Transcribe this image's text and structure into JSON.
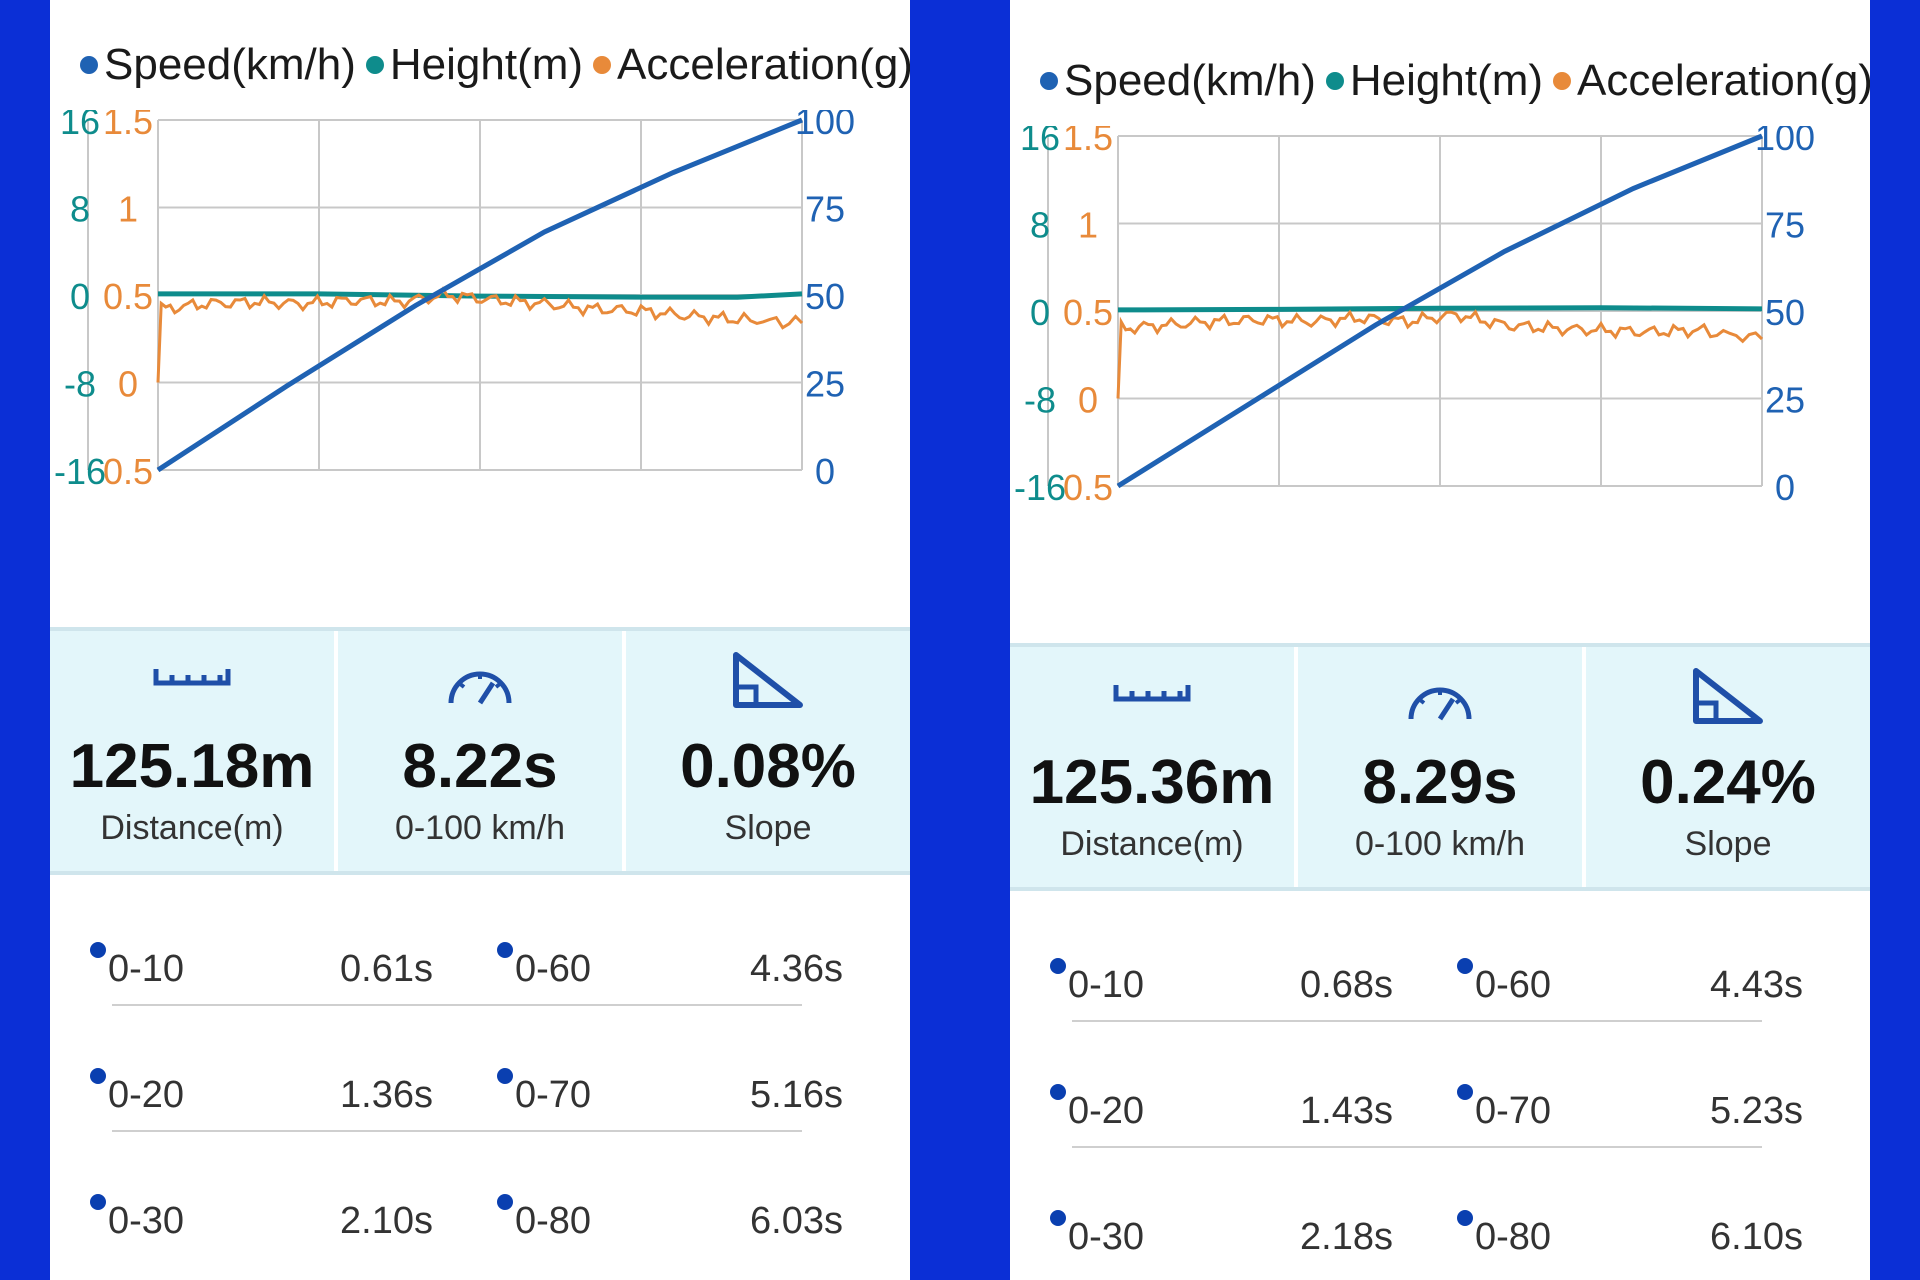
{
  "colors": {
    "speed": "#1f62b3",
    "height": "#0e8c8c",
    "acceleration": "#e88a3a",
    "grid": "#c8c8c8",
    "frame": "#0b2fd6"
  },
  "legend": {
    "speed": "Speed(km/h)",
    "height": "Height(m)",
    "acceleration": "Acceleration(g)"
  },
  "panels": [
    {
      "chart_data": {
        "type": "line",
        "x": [
          0,
          1,
          2,
          3,
          4
        ],
        "axes": {
          "height_ticks": [
            "16",
            "8",
            "0",
            "-8",
            "-16"
          ],
          "accel_ticks": [
            "1.5",
            "1",
            "0.5",
            "0",
            "0.5"
          ],
          "speed_ticks": [
            "100",
            "75",
            "50",
            "25",
            "0"
          ]
        },
        "series": [
          {
            "name": "Speed(km/h)",
            "values": [
              [
                0,
                0
              ],
              [
                0.8,
                24
              ],
              [
                1.6,
                47
              ],
              [
                2.4,
                68
              ],
              [
                3.2,
                85
              ],
              [
                4,
                100
              ]
            ]
          },
          {
            "name": "Height(m)",
            "values": [
              [
                0,
                0.1
              ],
              [
                1,
                0.1
              ],
              [
                2,
                -0.1
              ],
              [
                3,
                -0.2
              ],
              [
                3.6,
                -0.2
              ],
              [
                4,
                0.1
              ]
            ]
          },
          {
            "name": "Acceleration(g)",
            "values": [
              [
                0,
                0
              ],
              [
                0.02,
                0.42
              ],
              [
                0.3,
                0.45
              ],
              [
                0.6,
                0.46
              ],
              [
                0.9,
                0.45
              ],
              [
                1.2,
                0.47
              ],
              [
                1.5,
                0.46
              ],
              [
                1.8,
                0.5
              ],
              [
                2.1,
                0.47
              ],
              [
                2.4,
                0.45
              ],
              [
                2.7,
                0.42
              ],
              [
                3.0,
                0.41
              ],
              [
                3.3,
                0.38
              ],
              [
                3.6,
                0.36
              ],
              [
                4,
                0.34
              ]
            ]
          }
        ]
      },
      "stats": [
        {
          "value": "125.18m",
          "label": "Distance(m)"
        },
        {
          "value": "8.22s",
          "label": "0-100 km/h"
        },
        {
          "value": "0.08%",
          "label": "Slope"
        }
      ],
      "splits": [
        {
          "a_label": "0-10",
          "a_time": "0.61s",
          "b_label": "0-60",
          "b_time": "4.36s"
        },
        {
          "a_label": "0-20",
          "a_time": "1.36s",
          "b_label": "0-70",
          "b_time": "5.16s"
        },
        {
          "a_label": "0-30",
          "a_time": "2.10s",
          "b_label": "0-80",
          "b_time": "6.03s"
        }
      ]
    },
    {
      "chart_data": {
        "type": "line",
        "x": [
          0,
          1,
          2,
          3,
          4
        ],
        "axes": {
          "height_ticks": [
            "16",
            "8",
            "0",
            "-8",
            "-16"
          ],
          "accel_ticks": [
            "1.5",
            "1",
            "0.5",
            "0",
            "0.5"
          ],
          "speed_ticks": [
            "100",
            "75",
            "50",
            "25",
            "0"
          ]
        },
        "series": [
          {
            "name": "Speed(km/h)",
            "values": [
              [
                0,
                0
              ],
              [
                0.8,
                23
              ],
              [
                1.6,
                46
              ],
              [
                2.4,
                67
              ],
              [
                3.2,
                85
              ],
              [
                4,
                100
              ]
            ]
          },
          {
            "name": "Height(m)",
            "values": [
              [
                0,
                0.1
              ],
              [
                1,
                0.15
              ],
              [
                2,
                0.25
              ],
              [
                3,
                0.3
              ],
              [
                4,
                0.2
              ]
            ]
          },
          {
            "name": "Acceleration(g)",
            "values": [
              [
                0,
                0
              ],
              [
                0.02,
                0.4
              ],
              [
                0.3,
                0.42
              ],
              [
                0.6,
                0.44
              ],
              [
                0.9,
                0.45
              ],
              [
                1.2,
                0.44
              ],
              [
                1.5,
                0.46
              ],
              [
                1.8,
                0.44
              ],
              [
                2.1,
                0.48
              ],
              [
                2.4,
                0.42
              ],
              [
                2.7,
                0.4
              ],
              [
                3.0,
                0.39
              ],
              [
                3.3,
                0.38
              ],
              [
                3.6,
                0.39
              ],
              [
                4,
                0.34
              ]
            ]
          }
        ]
      },
      "stats": [
        {
          "value": "125.36m",
          "label": "Distance(m)"
        },
        {
          "value": "8.29s",
          "label": "0-100 km/h"
        },
        {
          "value": "0.24%",
          "label": "Slope"
        }
      ],
      "splits": [
        {
          "a_label": "0-10",
          "a_time": "0.68s",
          "b_label": "0-60",
          "b_time": "4.43s"
        },
        {
          "a_label": "0-20",
          "a_time": "1.43s",
          "b_label": "0-70",
          "b_time": "5.23s"
        },
        {
          "a_label": "0-30",
          "a_time": "2.18s",
          "b_label": "0-80",
          "b_time": "6.10s"
        }
      ]
    }
  ]
}
